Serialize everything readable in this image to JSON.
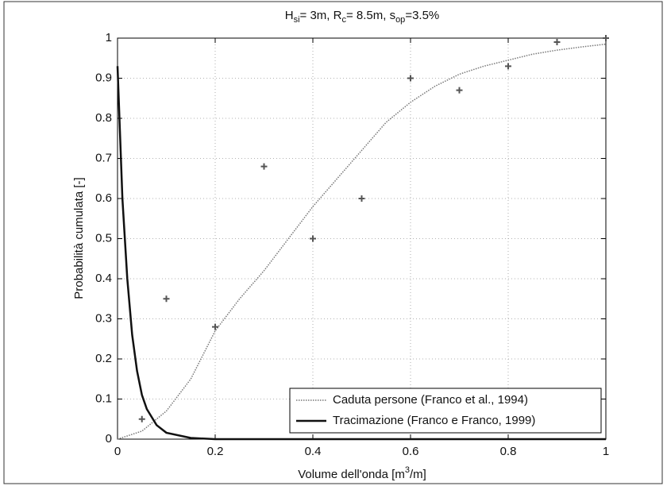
{
  "chart_data": {
    "type": "line",
    "title_parts": [
      "H",
      "si",
      "= 3m, R",
      "c",
      "= 8.5m,  s",
      "op",
      "=3.5%"
    ],
    "xlabel_parts": [
      "Volume dell'onda [m",
      "3",
      "/m]"
    ],
    "ylabel": "Probabilità cumulata [-]",
    "xlim": [
      0,
      1
    ],
    "xticks": [
      0,
      0.2,
      0.4,
      0.6,
      0.8,
      1
    ],
    "ylim": [
      0,
      1
    ],
    "yticks": [
      0,
      0.1,
      0.2,
      0.3,
      0.4,
      0.5,
      0.6,
      0.7,
      0.8,
      0.9,
      1
    ],
    "grid": true,
    "legend": "lower right",
    "series": [
      {
        "name": "Caduta persone (Franco et al., 1994)",
        "color": "#777777",
        "style": "dotted",
        "x": [
          0,
          0.05,
          0.1,
          0.15,
          0.2,
          0.25,
          0.3,
          0.35,
          0.4,
          0.45,
          0.5,
          0.55,
          0.6,
          0.65,
          0.7,
          0.75,
          0.8,
          0.85,
          0.9,
          0.95,
          1
        ],
        "values": [
          0,
          0.02,
          0.07,
          0.15,
          0.27,
          0.35,
          0.42,
          0.5,
          0.58,
          0.65,
          0.72,
          0.79,
          0.84,
          0.88,
          0.91,
          0.93,
          0.945,
          0.96,
          0.97,
          0.978,
          0.985
        ]
      },
      {
        "name": "Tracimazione (Franco e Franco, 1999)",
        "color": "#111111",
        "style": "solid",
        "x": [
          0,
          0.01,
          0.02,
          0.03,
          0.04,
          0.05,
          0.06,
          0.08,
          0.1,
          0.15,
          0.2,
          1
        ],
        "values": [
          0.93,
          0.6,
          0.4,
          0.26,
          0.17,
          0.11,
          0.075,
          0.035,
          0.016,
          0.003,
          0,
          0
        ]
      },
      {
        "color": "#555555",
        "style": "markers",
        "x": [
          0.05,
          0.1,
          0.2,
          0.3,
          0.4,
          0.5,
          0.6,
          0.7,
          0.8,
          0.9,
          1
        ],
        "values": [
          0.05,
          0.35,
          0.28,
          0.68,
          0.5,
          0.6,
          0.9,
          0.87,
          0.93,
          0.99,
          1
        ]
      }
    ]
  }
}
